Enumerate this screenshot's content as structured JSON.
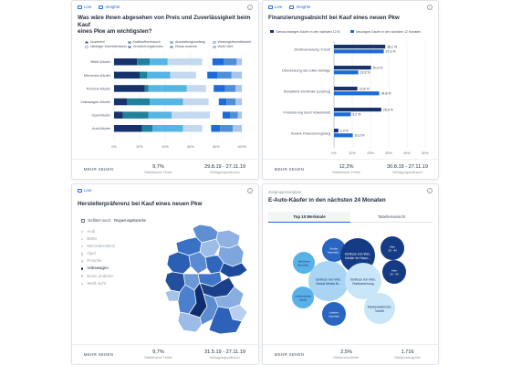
{
  "colors": {
    "navy": "#17336b",
    "teal": "#21819a",
    "sky": "#56b6e3",
    "pale_blue": "#c4d9ef",
    "white": "#ffffff",
    "royal": "#1e6bd6",
    "mid_blue": "#4f8fd8",
    "light": "#a9c6ea"
  },
  "common": {
    "live": "Live",
    "insights": "Insights",
    "more": "MEHR SEHEN",
    "info": "i"
  },
  "card_tl": {
    "title_line1": "Was wäre Ihnen abgesehen von Preis und Zuverlässigkeit beim Kauf",
    "title_line2": "eines Pkw am wichtigsten?",
    "footer": {
      "stat1_value": "9,7%",
      "stat1_label": "Statistischer Fehler",
      "stat2_value": "29.8.19 - 27.11.19",
      "stat2_label": "Befragungszeitraum"
    }
  },
  "card_tr": {
    "title": "Finanzierungsabsicht bei Kauf eines neuen Pkw",
    "footer": {
      "stat1_value": "12,2%",
      "stat1_label": "Statistischer Fehler",
      "stat2_value": "30.8.19 - 27.11.19",
      "stat2_label": "Befragungszeitraum"
    }
  },
  "card_bl": {
    "title": "Herstellerpräferenz bei Kauf eines neuen Pkw",
    "filter_label": "Gefiltert nach:",
    "filter_value": "Regierungsbezirke",
    "brands": [
      {
        "label": "Audi",
        "selected": false
      },
      {
        "label": "BMW",
        "selected": false
      },
      {
        "label": "Mercedes-Benz",
        "selected": false
      },
      {
        "label": "Opel",
        "selected": false
      },
      {
        "label": "Porsche",
        "selected": false
      },
      {
        "label": "Volkswagen",
        "selected": true
      },
      {
        "label": "Einen anderen",
        "selected": false
      },
      {
        "label": "Weiß nicht",
        "selected": false
      }
    ],
    "footer": {
      "stat1_value": "9,7%",
      "stat1_label": "Statistischer Fehler",
      "stat2_value": "31.5.19 - 27.11.19",
      "stat2_label": "Befragungszeitraum"
    }
  },
  "card_br": {
    "subhead": "Zielgruppenanalyse",
    "title": "E-Auto-Käufer in den nächsten 24 Monaten",
    "tabs": [
      "Top 10 Merkmale",
      "Tabellenansicht"
    ],
    "bubbles": [
      {
        "line1": "Kinder",
        "line2": "Haushalt...",
        "color": "#2a65c2",
        "text": "#ffffff"
      },
      {
        "line1": "Einfluss von Wer.",
        "line2": "Kinder im Haus...",
        "color": "#163b85",
        "text": "#ffffff"
      },
      {
        "line1": "Alter",
        "line2": "35 - 44",
        "color": "#163b85",
        "text": "#ffffff"
      },
      {
        "line1": "Jährliches",
        "line2": "Haushalt...",
        "color": "#58b2e8",
        "text": "#17336b"
      },
      {
        "line1": "Einfluss von Wer.",
        "line2": "Social Media M...",
        "color": "#a9d5f3",
        "text": "#17336b"
      },
      {
        "line1": "Einfluss von Wer.",
        "line2": "Radiowerbung",
        "color": "#c9e6f8",
        "text": "#17336b"
      },
      {
        "line1": "Alter",
        "line2": "25 - 34",
        "color": "#163b85",
        "text": "#ffffff"
      },
      {
        "line1": "Lebensphase",
        "line2": "Single",
        "color": "#58b2e8",
        "text": "#17336b"
      },
      {
        "line1": "Lebens-",
        "line2": "haushalt",
        "color": "#2a65c2",
        "text": "#ffffff"
      },
      {
        "line1": "Markenwahrneh.",
        "line2": "Vorteil",
        "color": "#c9e6f8",
        "text": "#17336b"
      }
    ],
    "footer": {
      "stat1_value": "2,5%",
      "stat1_label": "Stichprobenfehler",
      "stat2_value": "1.716",
      "stat2_label": "Stichprobengröße"
    }
  },
  "chart_data": [
    {
      "type": "bar",
      "orientation": "horizontal",
      "stacked": true,
      "percent_axis": true,
      "legend": [
        "Aussehen",
        "Kraftstoffverbrauch",
        "Ausstattungsumfang",
        "Wartungsfreundlichkeit",
        "Niedriger Kilometerstand",
        "Versicherungskosten",
        "Etwas anderes",
        "Weiß nicht"
      ],
      "legend_colors": [
        "#17336b",
        "#21819a",
        "#56b6e3",
        "#c4d9ef",
        "#ffffff",
        "#1e6bd6",
        "#4f8fd8",
        "#a9c6ea"
      ],
      "categories": [
        "BMW-Käufer",
        "Mercedes-Käufer",
        "Porsche-Käufer",
        "Volkswagen-Käufer",
        "Opel-Käufer",
        "Audi-Käufer"
      ],
      "series": [
        {
          "name": "Aussehen",
          "values": [
            18,
            20,
            24,
            10,
            7,
            22
          ]
        },
        {
          "name": "Kraftstoffverbrauch",
          "values": [
            10,
            6,
            3,
            18,
            20,
            8
          ]
        },
        {
          "name": "Ausstattungsumfang",
          "values": [
            14,
            18,
            30,
            26,
            18,
            24
          ]
        },
        {
          "name": "Wartungsfreundlichkeit",
          "values": [
            27,
            20,
            15,
            20,
            30,
            15
          ]
        },
        {
          "name": "Niedriger Kilometerstand",
          "values": [
            8,
            9,
            6,
            8,
            10,
            7
          ]
        },
        {
          "name": "Versicherungskosten",
          "values": [
            9,
            8,
            9,
            6,
            6,
            7
          ]
        },
        {
          "name": "Etwas anderes",
          "values": [
            10,
            11,
            8,
            7,
            6,
            10
          ]
        },
        {
          "name": "Weiß nicht",
          "values": [
            4,
            8,
            5,
            5,
            3,
            7
          ]
        }
      ],
      "x_ticks": [
        "0%",
        "20%",
        "40%",
        "60%",
        "80%",
        "100%"
      ],
      "xlim": [
        0,
        100
      ]
    },
    {
      "type": "bar",
      "orientation": "horizontal",
      "categories": [
        "Zinsfinanzierung / Kredit",
        "Überweisung des vollen Betrags",
        "Monatliche Kreditrate (Leasing)",
        "Finanzierung durch Ratenkredit",
        "Andere Finanzierungsweg"
      ],
      "series": [
        {
          "name": "Gebrauchtwagen-Käufer in den nächsten 12 M.",
          "color": "#17336b",
          "values": [
            28.1,
            20.3,
            12.8,
            25.9,
            2.4
          ]
        },
        {
          "name": "Neuwagen-Käufer in den nächsten 12 Monaten",
          "color": "#1e6bd6",
          "values": [
            27.3,
            13.3,
            24.8,
            9.2,
            10.3
          ]
        }
      ],
      "data_labels": [
        [
          "28,1 %",
          "27,3 %"
        ],
        [
          "20,3 %",
          "13,3 %"
        ],
        [
          "12,8 %",
          "24,8 %"
        ],
        [
          "25,9 %",
          "9,2 %"
        ],
        [
          "2,4 %",
          "10,3 %"
        ]
      ],
      "x_ticks": [
        "0%",
        "10%",
        "20%",
        "30%",
        "40%",
        "50%"
      ],
      "xlim": [
        0,
        50
      ]
    }
  ]
}
